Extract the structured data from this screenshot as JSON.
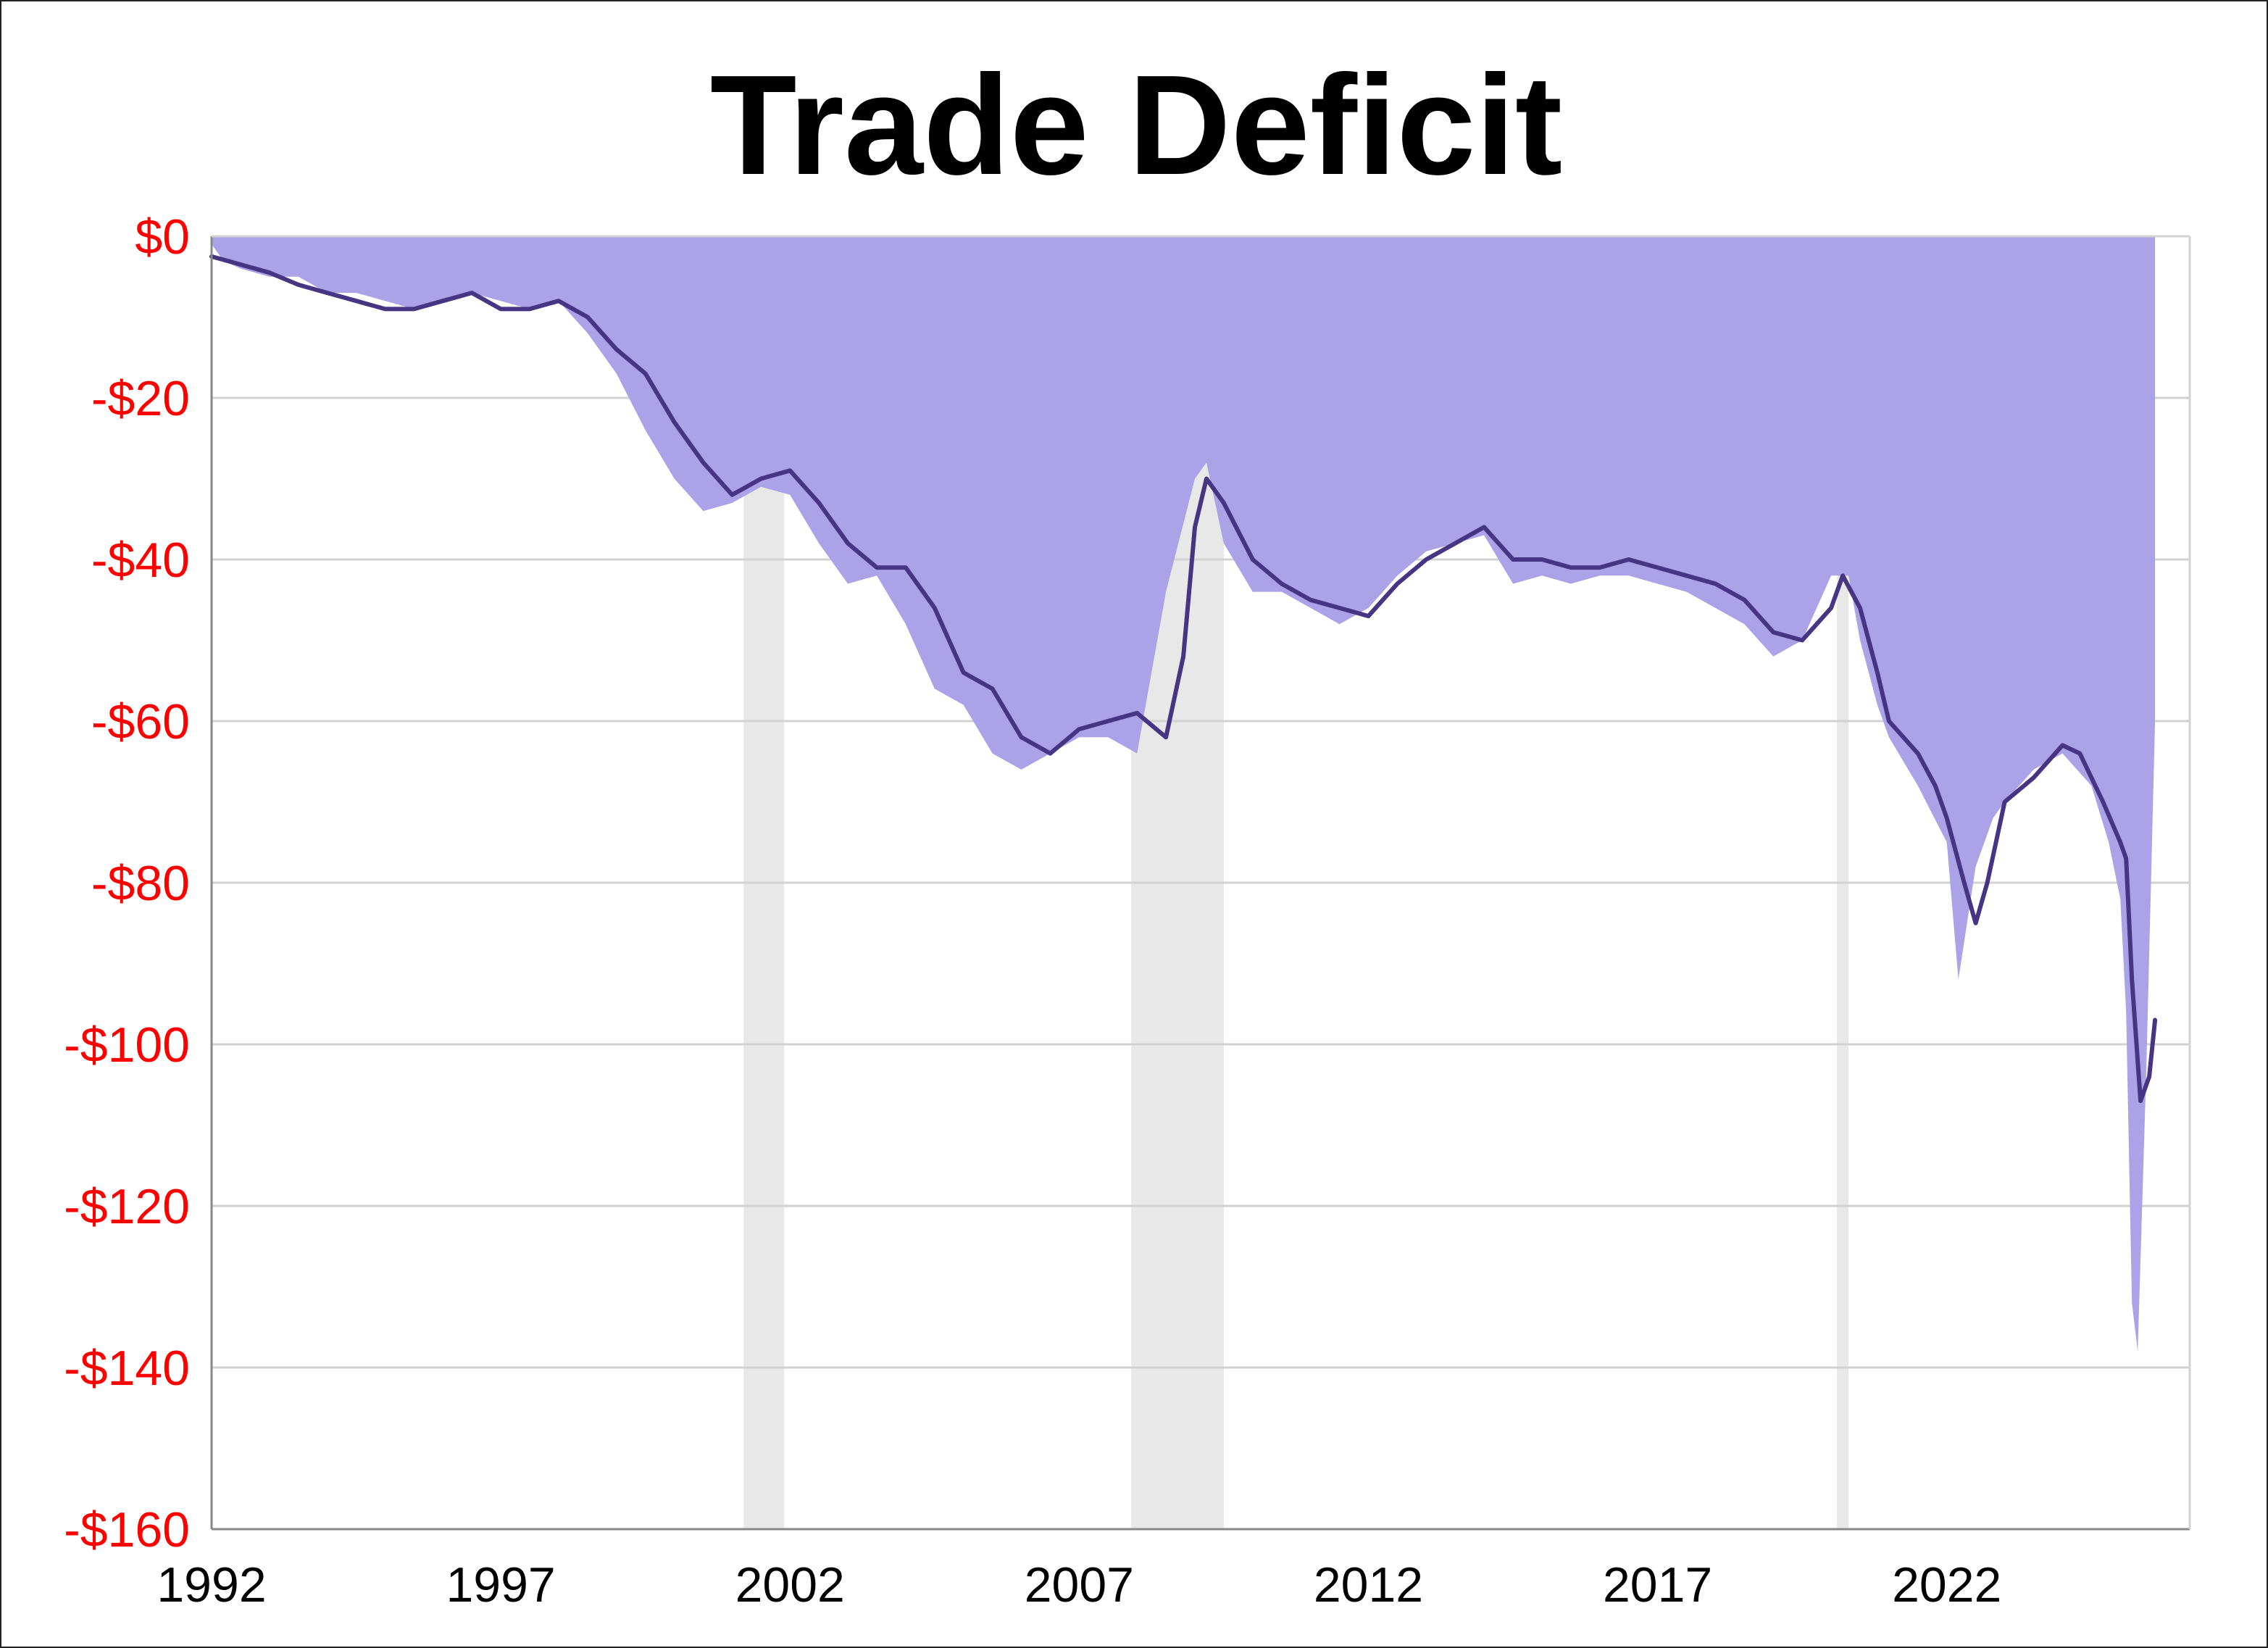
{
  "colors": {
    "area": "#aca2e8",
    "line": "#463583",
    "recession": "#e8e8e8",
    "grid": "#d2d2d2",
    "axis": "#888888",
    "y_tick_text": "#ff0000",
    "x_tick_text": "#000000"
  },
  "chart_data": {
    "type": "area",
    "title": "Trade Deficit",
    "xlabel": "",
    "ylabel": "",
    "xlim": [
      1992.0,
      2026.2
    ],
    "ylim": [
      -160,
      0
    ],
    "grid": "horizontal",
    "legend": "none",
    "x_ticks": [
      1992,
      1997,
      2002,
      2007,
      2012,
      2017,
      2022
    ],
    "x_tick_labels": [
      "1992",
      "1997",
      "2002",
      "2007",
      "2012",
      "2017",
      "2022"
    ],
    "y_ticks": [
      0,
      -20,
      -40,
      -60,
      -80,
      -100,
      -120,
      -140,
      -160
    ],
    "y_tick_labels": [
      "$0",
      "-$20",
      "-$40",
      "-$60",
      "-$80",
      "-$100",
      "-$120",
      "-$140",
      "-$160"
    ],
    "recessions": [
      {
        "start": 2001.2,
        "end": 2001.9
      },
      {
        "start": 2007.9,
        "end": 2009.5
      },
      {
        "start": 2020.1,
        "end": 2020.3
      }
    ],
    "series": [
      {
        "kind": "area",
        "x": [
          1992.0,
          1992.2,
          1992.5,
          1993.0,
          1993.5,
          1994.0,
          1994.5,
          1995.0,
          1995.5,
          1996.0,
          1996.5,
          1997.0,
          1997.5,
          1998.0,
          1998.5,
          1999.0,
          1999.5,
          2000.0,
          2000.5,
          2001.0,
          2001.5,
          2002.0,
          2002.5,
          2003.0,
          2003.5,
          2004.0,
          2004.5,
          2005.0,
          2005.5,
          2006.0,
          2006.5,
          2007.0,
          2007.5,
          2008.0,
          2008.5,
          2009.0,
          2009.2,
          2009.5,
          2010.0,
          2010.5,
          2011.0,
          2011.5,
          2012.0,
          2012.5,
          2013.0,
          2013.5,
          2014.0,
          2014.5,
          2015.0,
          2015.5,
          2016.0,
          2016.5,
          2017.0,
          2017.5,
          2018.0,
          2018.5,
          2019.0,
          2019.5,
          2020.0,
          2020.3,
          2020.5,
          2020.8,
          2021.0,
          2021.5,
          2022.0,
          2022.2,
          2022.5,
          2022.8,
          2023.0,
          2023.5,
          2024.0,
          2024.5,
          2024.8,
          2025.0,
          2025.1,
          2025.2,
          2025.3,
          2025.45,
          2025.6
        ],
        "values": [
          -1,
          -3,
          -4,
          -5,
          -5,
          -7,
          -7,
          -8,
          -9,
          -8,
          -7,
          -8,
          -9,
          -8,
          -12,
          -17,
          -24,
          -30,
          -34,
          -33,
          -31,
          -32,
          -38,
          -43,
          -42,
          -48,
          -56,
          -58,
          -64,
          -66,
          -64,
          -62,
          -62,
          -64,
          -44,
          -30,
          -28,
          -38,
          -44,
          -44,
          -46,
          -48,
          -46,
          -42,
          -39,
          -38,
          -37,
          -43,
          -42,
          -43,
          -42,
          -42,
          -43,
          -44,
          -46,
          -48,
          -52,
          -50,
          -42,
          -42,
          -50,
          -58,
          -62,
          -68,
          -75,
          -92,
          -78,
          -72,
          -70,
          -66,
          -64,
          -68,
          -75,
          -82,
          -96,
          -132,
          -138,
          -103,
          -60
        ]
      },
      {
        "kind": "line",
        "x": [
          1992.0,
          1992.5,
          1993.0,
          1993.5,
          1994.0,
          1994.5,
          1995.0,
          1995.5,
          1996.0,
          1996.5,
          1997.0,
          1997.5,
          1998.0,
          1998.5,
          1999.0,
          1999.5,
          2000.0,
          2000.5,
          2001.0,
          2001.5,
          2002.0,
          2002.5,
          2003.0,
          2003.5,
          2004.0,
          2004.5,
          2005.0,
          2005.5,
          2006.0,
          2006.5,
          2007.0,
          2007.5,
          2008.0,
          2008.5,
          2008.8,
          2009.0,
          2009.2,
          2009.5,
          2010.0,
          2010.5,
          2011.0,
          2011.5,
          2012.0,
          2012.5,
          2013.0,
          2013.5,
          2014.0,
          2014.5,
          2015.0,
          2015.5,
          2016.0,
          2016.5,
          2017.0,
          2017.5,
          2018.0,
          2018.5,
          2019.0,
          2019.5,
          2020.0,
          2020.2,
          2020.5,
          2020.8,
          2021.0,
          2021.5,
          2021.8,
          2022.0,
          2022.3,
          2022.5,
          2022.7,
          2023.0,
          2023.5,
          2024.0,
          2024.3,
          2024.7,
          2025.0,
          2025.1,
          2025.2,
          2025.35,
          2025.5,
          2025.6
        ],
        "values": [
          -2.5,
          -3.5,
          -4.5,
          -6,
          -7,
          -8,
          -9,
          -9,
          -8,
          -7,
          -9,
          -9,
          -8,
          -10,
          -14,
          -17,
          -23,
          -28,
          -32,
          -30,
          -29,
          -33,
          -38,
          -41,
          -41,
          -46,
          -54,
          -56,
          -62,
          -64,
          -61,
          -60,
          -59,
          -62,
          -52,
          -36,
          -30,
          -33,
          -40,
          -43,
          -45,
          -46,
          -47,
          -43,
          -40,
          -38,
          -36,
          -40,
          -40,
          -41,
          -41,
          -40,
          -41,
          -42,
          -43,
          -45,
          -49,
          -50,
          -46,
          -42,
          -46,
          -54,
          -60,
          -64,
          -68,
          -72,
          -80,
          -85,
          -80,
          -70,
          -67,
          -63,
          -64,
          -70,
          -75,
          -77,
          -92,
          -107,
          -104,
          -97
        ]
      }
    ]
  }
}
